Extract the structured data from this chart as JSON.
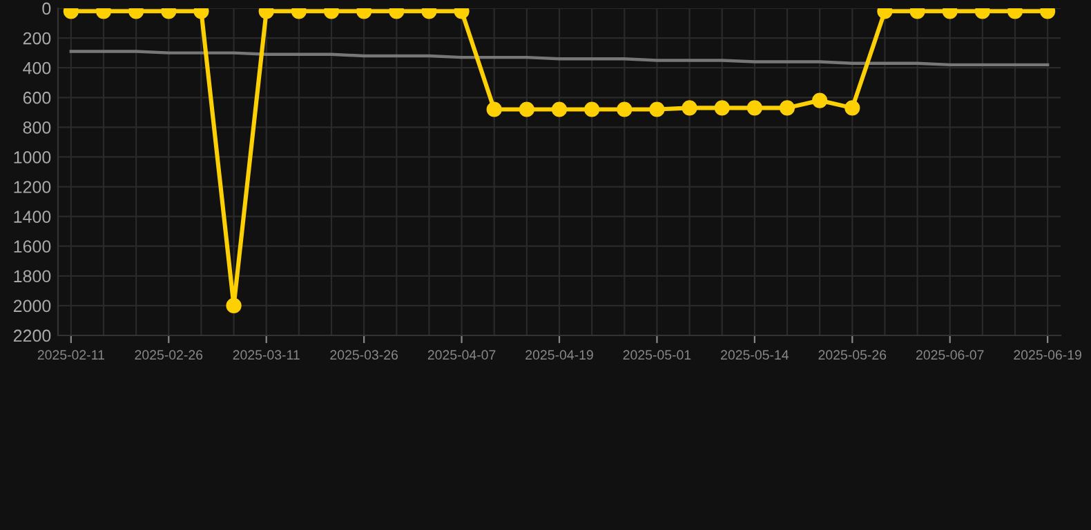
{
  "chart_data": {
    "type": "line",
    "categories": [
      "2025-02-11",
      null,
      null,
      "2025-02-26",
      null,
      null,
      "2025-03-11",
      null,
      null,
      "2025-03-26",
      null,
      null,
      "2025-04-07",
      null,
      null,
      "2025-04-19",
      null,
      null,
      "2025-05-01",
      null,
      null,
      "2025-05-14",
      null,
      null,
      "2025-05-26",
      null,
      null,
      "2025-06-07",
      null,
      null,
      "2025-06-19"
    ],
    "series": [
      {
        "color": "#ffd000",
        "marker": "circle",
        "values": [
          20,
          20,
          20,
          20,
          20,
          2000,
          20,
          20,
          20,
          20,
          20,
          20,
          20,
          680,
          680,
          680,
          680,
          680,
          680,
          670,
          670,
          670,
          670,
          620,
          670,
          20,
          20,
          20,
          20,
          20,
          20
        ]
      },
      {
        "color": "#777777",
        "marker": "none",
        "values": [
          290,
          290,
          290,
          300,
          300,
          300,
          310,
          310,
          310,
          320,
          320,
          320,
          330,
          330,
          330,
          340,
          340,
          340,
          350,
          350,
          350,
          360,
          360,
          360,
          370,
          370,
          370,
          380,
          380,
          380,
          380
        ]
      }
    ],
    "ylim": [
      2200,
      0
    ],
    "yticks": [
      0,
      200,
      400,
      600,
      800,
      1000,
      1200,
      1400,
      1600,
      1800,
      2000,
      2200
    ],
    "grid": true
  }
}
